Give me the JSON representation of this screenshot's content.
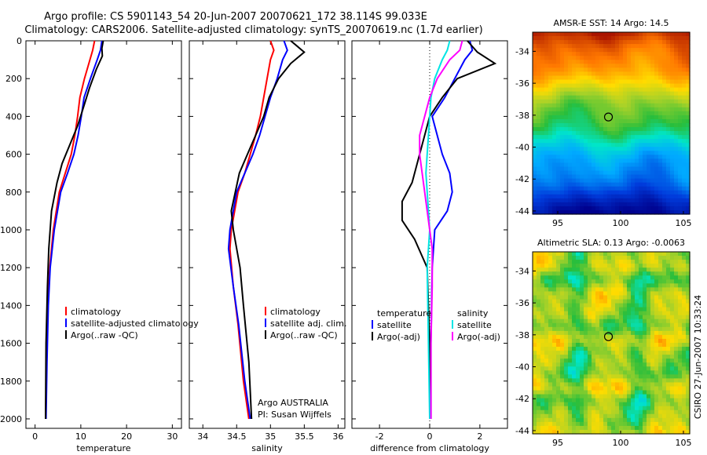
{
  "title_line1": "Argo profile: CS 5901143_54 20-Jun-2007 20070621_172 38.114S 99.033E",
  "title_line2": "Climatology: CARS2006. Satellite-adjusted climatology: synTS_20070619.nc (1.7d earlier)",
  "side_label": "CSIRO 27-Jun-2007 10:33:24",
  "colors": {
    "climatology": "#ff0000",
    "satellite": "#0000ff",
    "argo": "#000000",
    "salinity_sat": "#00e5e5",
    "salinity_argo": "#ff00ff"
  },
  "chart_data": [
    {
      "type": "line",
      "xlabel": "temperature",
      "ylabel": "",
      "xlim": [
        -2,
        32
      ],
      "ylim": [
        2050,
        0
      ],
      "xticks": [
        "0",
        "10",
        "20",
        "30"
      ],
      "xtick_values": [
        0,
        10,
        20,
        30
      ],
      "yticks": [
        "0",
        "200",
        "400",
        "600",
        "800",
        "1000",
        "1200",
        "1400",
        "1600",
        "1800",
        "2000"
      ],
      "ytick_values": [
        0,
        200,
        400,
        600,
        800,
        1000,
        1200,
        1400,
        1600,
        1800,
        2000
      ],
      "legend_placement": "lower-right",
      "legend": [
        "climatology",
        "satellite-adjusted climatology",
        "Argo(..raw -QC)"
      ],
      "series": [
        {
          "name": "climatology",
          "color": "#ff0000",
          "x": [
            13,
            12.6,
            12,
            10.8,
            9.8,
            9.3,
            8.7,
            7.9,
            6.6,
            5.3,
            4.0,
            3.2,
            2.8,
            2.5,
            2.3
          ],
          "y": [
            0,
            50,
            100,
            200,
            300,
            400,
            500,
            600,
            700,
            800,
            1000,
            1200,
            1400,
            1700,
            2000
          ]
        },
        {
          "name": "satellite-adjusted climatology",
          "color": "#0000ff",
          "x": [
            14.6,
            14.3,
            13.6,
            12.1,
            10.7,
            10.1,
            9.4,
            8.5,
            7.1,
            5.6,
            4.2,
            3.3,
            2.9,
            2.6,
            2.4
          ],
          "y": [
            0,
            50,
            100,
            200,
            300,
            400,
            500,
            600,
            700,
            800,
            1000,
            1200,
            1400,
            1700,
            2000
          ]
        },
        {
          "name": "Argo(..raw -QC)",
          "color": "#000000",
          "x": [
            14.9,
            14.6,
            14.7,
            13.4,
            11.9,
            10.6,
            9.3,
            7.6,
            5.9,
            4.8,
            3.6,
            3.0,
            2.7,
            2.4,
            2.3
          ],
          "y": [
            0,
            40,
            80,
            150,
            250,
            350,
            450,
            550,
            650,
            750,
            900,
            1100,
            1300,
            1600,
            2000
          ]
        }
      ]
    },
    {
      "type": "line",
      "xlabel": "salinity",
      "ylabel": "",
      "xlim": [
        33.8,
        36.1
      ],
      "ylim": [
        2050,
        0
      ],
      "xticks": [
        "34",
        "34.5",
        "35",
        "35.5",
        "36"
      ],
      "xtick_values": [
        34,
        34.5,
        35,
        35.5,
        36
      ],
      "legend_placement": "lower-right",
      "legend": [
        "climatology",
        "satellite adj. clim.",
        "Argo(..raw -QC)"
      ],
      "annotation": [
        "Argo AUSTRALIA",
        "PI: Susan Wijffels"
      ],
      "series": [
        {
          "name": "climatology",
          "color": "#ff0000",
          "x": [
            35.0,
            35.05,
            35.0,
            34.95,
            34.9,
            34.85,
            34.78,
            34.7,
            34.62,
            34.52,
            34.42,
            34.4,
            34.45,
            34.52,
            34.6,
            34.68
          ],
          "y": [
            0,
            50,
            100,
            200,
            300,
            400,
            500,
            600,
            700,
            800,
            1000,
            1100,
            1300,
            1500,
            1800,
            2000
          ]
        },
        {
          "name": "satellite adj. clim.",
          "color": "#0000ff",
          "x": [
            35.2,
            35.25,
            35.18,
            35.1,
            35.0,
            34.92,
            34.84,
            34.74,
            34.62,
            34.5,
            34.4,
            34.38,
            34.45,
            34.53,
            34.62,
            34.7
          ],
          "y": [
            0,
            50,
            100,
            200,
            300,
            400,
            500,
            600,
            700,
            800,
            1000,
            1100,
            1300,
            1500,
            1800,
            2000
          ]
        },
        {
          "name": "Argo(..raw -QC)",
          "color": "#000000",
          "x": [
            35.3,
            35.4,
            35.5,
            35.3,
            35.12,
            34.98,
            34.9,
            34.78,
            34.66,
            34.54,
            34.42,
            34.45,
            34.55,
            34.6,
            34.68,
            34.72
          ],
          "y": [
            0,
            30,
            60,
            120,
            200,
            300,
            400,
            500,
            600,
            700,
            900,
            1000,
            1200,
            1400,
            1700,
            2000
          ]
        }
      ]
    },
    {
      "type": "line",
      "xlabel": "difference from climatology",
      "ylabel": "",
      "xlim": [
        -3.1,
        3.1
      ],
      "ylim": [
        2050,
        0
      ],
      "xticks": [
        "-2",
        "0",
        "2"
      ],
      "xtick_values": [
        -2,
        0,
        2
      ],
      "legend_placement": "lower-right",
      "legend_left": [
        "temperature",
        "satellite",
        "Argo(-adj)"
      ],
      "legend_right": [
        "salinity",
        "satellite",
        "Argo(-adj)"
      ],
      "series": [
        {
          "name": "temperature satellite",
          "color": "#0000ff",
          "x": [
            1.6,
            1.7,
            1.4,
            1.0,
            0.6,
            0.1,
            0.3,
            0.5,
            0.8,
            0.9,
            0.7,
            0.2,
            0.1,
            0.05,
            0.05
          ],
          "y": [
            0,
            50,
            100,
            200,
            300,
            400,
            500,
            600,
            700,
            800,
            900,
            1000,
            1200,
            1600,
            2000
          ]
        },
        {
          "name": "temperature Argo(-adj)",
          "color": "#000000",
          "x": [
            1.5,
            1.9,
            2.6,
            1.1,
            0.5,
            0.0,
            -0.3,
            -0.5,
            -0.7,
            -1.1,
            -1.1,
            -0.6,
            -0.1,
            0.0,
            0.0
          ],
          "y": [
            0,
            60,
            120,
            200,
            300,
            400,
            550,
            650,
            750,
            850,
            950,
            1050,
            1200,
            1600,
            2000
          ]
        },
        {
          "name": "salinity satellite",
          "color": "#00e5e5",
          "x": [
            0.8,
            0.7,
            0.5,
            0.2,
            0.05,
            0.0,
            -0.05,
            -0.1,
            -0.15,
            -0.1,
            -0.05,
            0.0,
            -0.1,
            -0.05,
            0.0
          ],
          "y": [
            0,
            50,
            100,
            200,
            300,
            400,
            500,
            600,
            700,
            800,
            900,
            1000,
            1200,
            1600,
            2000
          ]
        },
        {
          "name": "salinity Argo(-adj)",
          "color": "#ff00ff",
          "x": [
            1.3,
            1.2,
            0.8,
            0.3,
            0.0,
            -0.4,
            -0.4,
            -0.3,
            -0.2,
            -0.1,
            0.0,
            0.1,
            0.1,
            0.05,
            0.05
          ],
          "y": [
            0,
            50,
            100,
            200,
            300,
            500,
            600,
            700,
            800,
            900,
            1000,
            1100,
            1300,
            1600,
            2000
          ]
        }
      ]
    },
    {
      "type": "heatmap",
      "title": "AMSR-E SST: 14 Argo: 14.5",
      "xticks": [
        "95",
        "100",
        "105"
      ],
      "xtick_values": [
        95,
        100,
        105
      ],
      "yticks": [
        "-34",
        "-36",
        "-38",
        "-40",
        "-42",
        "-44"
      ],
      "ytick_values": [
        -34,
        -36,
        -38,
        -40,
        -42,
        -44
      ],
      "xlim": [
        93,
        105.5
      ],
      "ylim": [
        -44.2,
        -32.8
      ],
      "marker": {
        "lon": 99.033,
        "lat": -38.114
      }
    },
    {
      "type": "heatmap",
      "title": "Altimetric SLA: 0.13 Argo: -0.0063",
      "xticks": [
        "95",
        "100",
        "105"
      ],
      "xtick_values": [
        95,
        100,
        105
      ],
      "yticks": [
        "-34",
        "-36",
        "-38",
        "-40",
        "-42",
        "-44"
      ],
      "ytick_values": [
        -34,
        -36,
        -38,
        -40,
        -42,
        -44
      ],
      "xlim": [
        93,
        105.5
      ],
      "ylim": [
        -44.2,
        -32.8
      ],
      "marker": {
        "lon": 99.033,
        "lat": -38.114
      }
    }
  ]
}
